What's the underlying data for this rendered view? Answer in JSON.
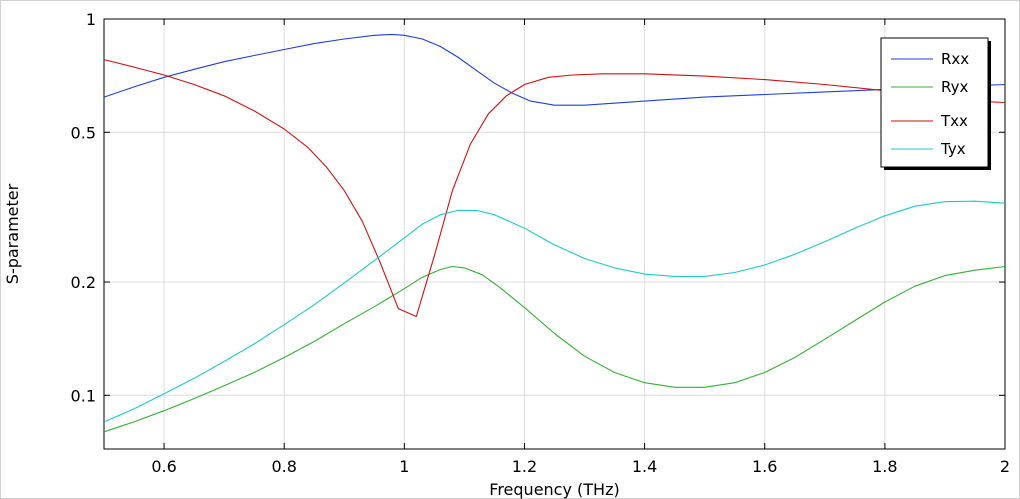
{
  "chart_data": {
    "type": "line",
    "xlabel": "Frequency (THz)",
    "ylabel": "S-parameter",
    "xlim": [
      0.5,
      2.0
    ],
    "ylim": [
      0.072,
      1.0
    ],
    "y_scale": "log",
    "grid": true,
    "legend_position": "top-right",
    "x_ticks": [
      0.6,
      0.8,
      1.0,
      1.2,
      1.4,
      1.6,
      1.8,
      2.0
    ],
    "x_tick_labels": [
      "0.6",
      "0.8",
      "1",
      "1.2",
      "1.4",
      "1.6",
      "1.8",
      "2"
    ],
    "y_ticks": [
      0.1,
      0.2,
      0.5,
      1.0
    ],
    "y_tick_labels": [
      "0.1",
      "0.2",
      "0.5",
      "1"
    ],
    "series": [
      {
        "name": "Rxx",
        "color": "#1f3fd6",
        "x": [
          0.5,
          0.55,
          0.6,
          0.65,
          0.7,
          0.75,
          0.8,
          0.85,
          0.9,
          0.95,
          0.98,
          1.0,
          1.03,
          1.06,
          1.09,
          1.12,
          1.15,
          1.18,
          1.21,
          1.25,
          1.3,
          1.4,
          1.5,
          1.6,
          1.7,
          1.8,
          1.9,
          1.95,
          2.0
        ],
        "y": [
          0.62,
          0.66,
          0.7,
          0.735,
          0.77,
          0.8,
          0.83,
          0.86,
          0.885,
          0.905,
          0.91,
          0.905,
          0.885,
          0.845,
          0.79,
          0.73,
          0.675,
          0.635,
          0.605,
          0.59,
          0.59,
          0.605,
          0.62,
          0.63,
          0.64,
          0.65,
          0.66,
          0.665,
          0.67
        ]
      },
      {
        "name": "Ryx",
        "color": "#33b033",
        "x": [
          0.5,
          0.55,
          0.6,
          0.65,
          0.7,
          0.75,
          0.8,
          0.85,
          0.9,
          0.95,
          1.0,
          1.03,
          1.06,
          1.08,
          1.1,
          1.13,
          1.16,
          1.2,
          1.25,
          1.3,
          1.35,
          1.4,
          1.45,
          1.5,
          1.55,
          1.6,
          1.65,
          1.7,
          1.75,
          1.8,
          1.85,
          1.9,
          1.95,
          2.0
        ],
        "y": [
          0.08,
          0.085,
          0.091,
          0.098,
          0.106,
          0.115,
          0.126,
          0.139,
          0.155,
          0.172,
          0.192,
          0.206,
          0.216,
          0.22,
          0.218,
          0.209,
          0.193,
          0.171,
          0.146,
          0.127,
          0.115,
          0.108,
          0.105,
          0.105,
          0.108,
          0.115,
          0.126,
          0.141,
          0.158,
          0.177,
          0.195,
          0.208,
          0.215,
          0.22
        ]
      },
      {
        "name": "Txx",
        "color": "#cc1111",
        "x": [
          0.5,
          0.55,
          0.6,
          0.65,
          0.7,
          0.75,
          0.8,
          0.84,
          0.87,
          0.9,
          0.93,
          0.96,
          0.99,
          1.02,
          1.05,
          1.08,
          1.11,
          1.14,
          1.17,
          1.2,
          1.24,
          1.28,
          1.33,
          1.4,
          1.5,
          1.6,
          1.7,
          1.8,
          1.9,
          1.95,
          2.0
        ],
        "y": [
          0.78,
          0.745,
          0.71,
          0.67,
          0.625,
          0.57,
          0.51,
          0.455,
          0.405,
          0.35,
          0.29,
          0.225,
          0.17,
          0.162,
          0.235,
          0.35,
          0.465,
          0.56,
          0.625,
          0.67,
          0.7,
          0.71,
          0.715,
          0.715,
          0.705,
          0.69,
          0.67,
          0.645,
          0.615,
          0.605,
          0.6
        ]
      },
      {
        "name": "Tyx",
        "color": "#1ec8cc",
        "x": [
          0.5,
          0.55,
          0.6,
          0.65,
          0.7,
          0.75,
          0.8,
          0.85,
          0.9,
          0.95,
          1.0,
          1.03,
          1.06,
          1.09,
          1.12,
          1.15,
          1.2,
          1.25,
          1.3,
          1.35,
          1.4,
          1.45,
          1.5,
          1.55,
          1.6,
          1.65,
          1.7,
          1.75,
          1.8,
          1.85,
          1.9,
          1.95,
          2.0
        ],
        "y": [
          0.085,
          0.092,
          0.101,
          0.111,
          0.123,
          0.137,
          0.154,
          0.174,
          0.199,
          0.228,
          0.262,
          0.285,
          0.302,
          0.31,
          0.31,
          0.302,
          0.278,
          0.251,
          0.231,
          0.218,
          0.21,
          0.207,
          0.207,
          0.212,
          0.222,
          0.237,
          0.256,
          0.278,
          0.3,
          0.318,
          0.327,
          0.328,
          0.324
        ]
      }
    ]
  }
}
